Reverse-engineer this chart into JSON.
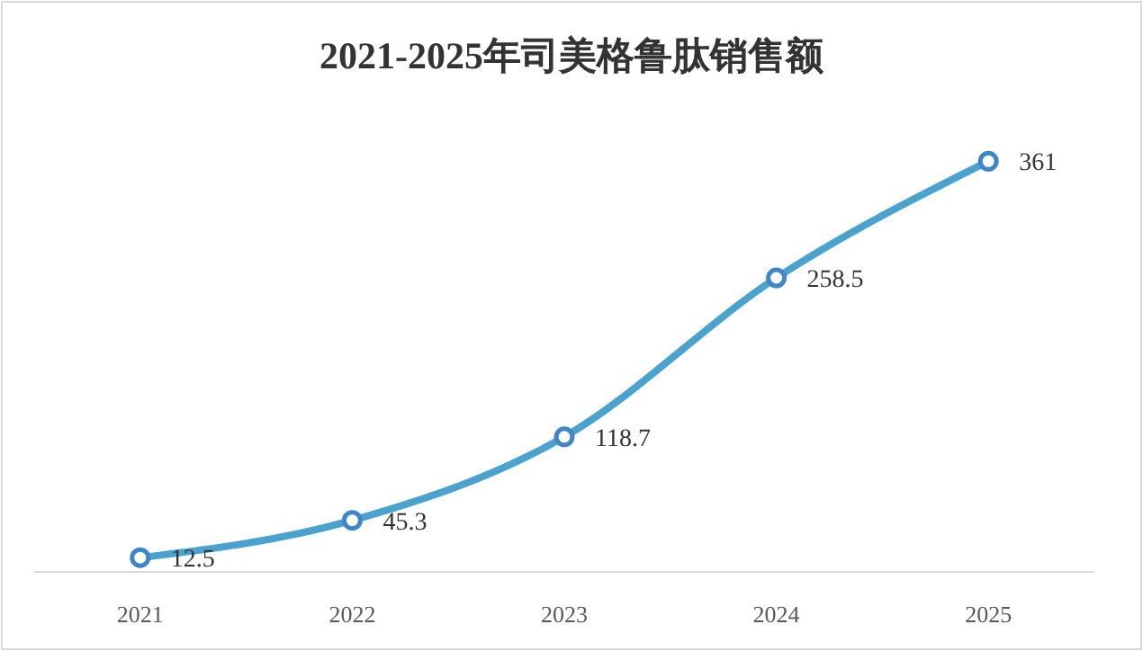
{
  "chart_data": {
    "type": "line",
    "title": "2021-2025年司美格鲁肽销售额",
    "categories": [
      "2021",
      "2022",
      "2023",
      "2024",
      "2025"
    ],
    "series": [
      {
        "color": "#4aa3cf",
        "values": [
          12.5,
          45.3,
          118.7,
          258.5,
          361
        ]
      }
    ],
    "data_labels": true,
    "marker": "circle",
    "line_style": "solid"
  }
}
